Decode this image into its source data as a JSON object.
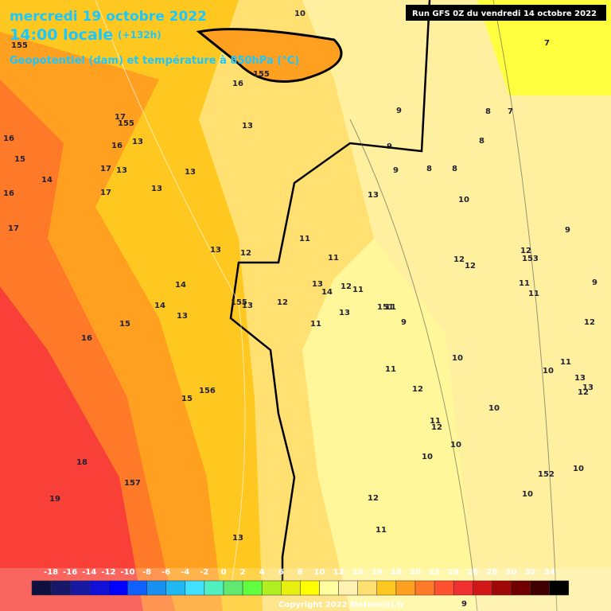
{
  "header": {
    "title": "mercredi 19 octobre 2022",
    "time": "14:00 locale",
    "offset": "(+132h)",
    "subtitle": "Geopotentiel (dam) et température à 850hPa (°C)",
    "run": "Run GFS 0Z du vendredi 14 octobre 2022"
  },
  "map_labels": [
    "155",
    "16",
    "155",
    "17",
    "155",
    "13",
    "16",
    "15",
    "16",
    "13",
    "17",
    "13",
    "14",
    "16",
    "17",
    "13",
    "13",
    "17",
    "13",
    "12",
    "14",
    "14",
    "13",
    "155",
    "13",
    "12",
    "15",
    "16",
    "156",
    "15",
    "18",
    "157",
    "19",
    "13",
    "11",
    "11",
    "13",
    "14",
    "12",
    "11",
    "13",
    "11",
    "151",
    "11",
    "13",
    "9",
    "9",
    "9",
    "8",
    "8",
    "10",
    "8",
    "8",
    "7",
    "7",
    "9",
    "12",
    "12",
    "12",
    "153",
    "11",
    "11",
    "9",
    "12",
    "10",
    "11",
    "12",
    "11",
    "12",
    "10",
    "10",
    "10",
    "10",
    "11",
    "13",
    "13",
    "12",
    "152",
    "10",
    "10",
    "12",
    "11",
    "10",
    "9",
    "9"
  ],
  "scale": {
    "labels": [
      "-18",
      "-16",
      "-14",
      "-12",
      "-10",
      "-8",
      "-6",
      "-4",
      "-2",
      "0",
      "2",
      "4",
      "6",
      "8",
      "10",
      "12",
      "14",
      "16",
      "18",
      "20",
      "22",
      "24",
      "26",
      "28",
      "30",
      "32",
      "34"
    ]
  },
  "copyright": "Copyright 2022 Meteociel.fr"
}
